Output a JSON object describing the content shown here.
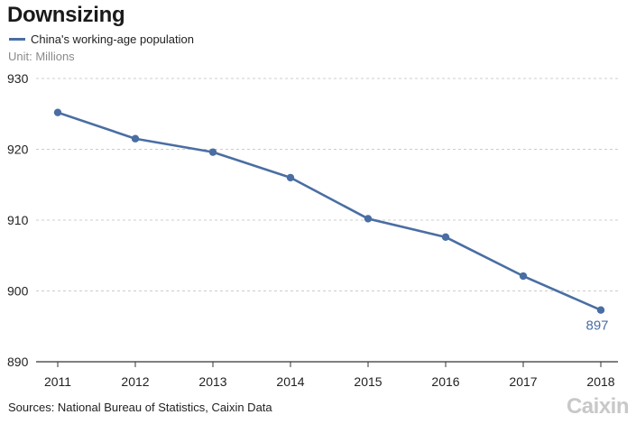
{
  "header": {
    "title": "Downsizing",
    "unit": "Unit: Millions"
  },
  "footer": {
    "source": "Sources: National Bureau of Statistics, Caixin Data",
    "logo": "Caixin"
  },
  "colors": {
    "series": "#4a6ea3",
    "grid": "#cccccc",
    "axis": "#333333"
  },
  "chart_data": {
    "type": "line",
    "title": "Downsizing",
    "xlabel": "",
    "ylabel": "",
    "unit": "Unit: Millions",
    "x": [
      2011,
      2012,
      2013,
      2014,
      2015,
      2016,
      2017,
      2018
    ],
    "x_tick_labels": [
      "2011",
      "2012",
      "2013",
      "2014",
      "2015",
      "2016",
      "2017",
      "2018"
    ],
    "y_ticks": [
      890,
      900,
      910,
      920,
      930
    ],
    "ylim": [
      890,
      930
    ],
    "grid": "horizontal dashed",
    "legend_position": "top-left",
    "series": [
      {
        "name": "China's working-age population",
        "values": [
          925.2,
          921.5,
          919.6,
          916.0,
          910.2,
          907.6,
          902.1,
          897.3
        ],
        "data_labels": [
          {
            "index": 7,
            "text": "897"
          }
        ]
      }
    ]
  }
}
